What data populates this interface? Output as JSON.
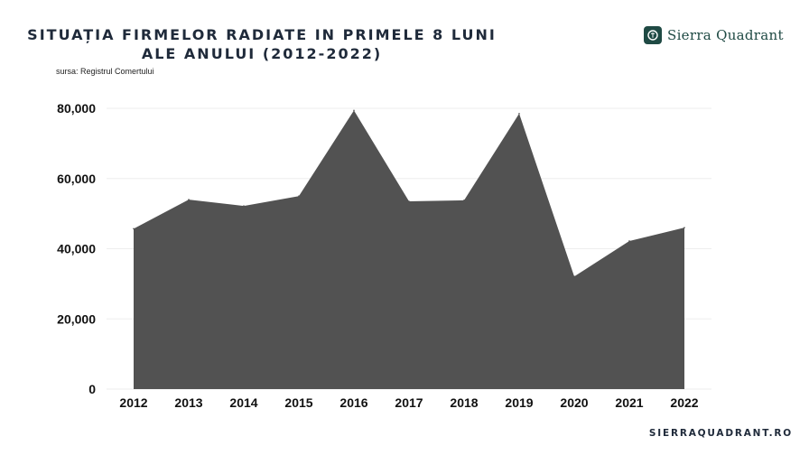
{
  "header": {
    "title_line1": "SITUAȚIA FIRMELOR RADIATE IN PRIMELE 8 LUNI",
    "title_line2": "ALE ANULUI (2012-2022)",
    "source": "sursa: Registrul Comertului"
  },
  "brand": {
    "name": "Sierra Quadrant",
    "website": "SIERRAQUADRANT.RO",
    "logo_icon": "sq-monogram-icon"
  },
  "colors": {
    "area": "#525252",
    "title": "#1f2a3a",
    "brand": "#1f4a44",
    "grid": "#eeeeee"
  },
  "chart_data": {
    "type": "area",
    "title": "SITUAȚIA FIRMELOR RADIATE IN PRIMELE 8 LUNI ALE ANULUI (2012-2022)",
    "xlabel": "",
    "ylabel": "",
    "categories": [
      "2012",
      "2013",
      "2014",
      "2015",
      "2016",
      "2017",
      "2018",
      "2019",
      "2020",
      "2021",
      "2022"
    ],
    "series": [
      {
        "values": [
          45700,
          54000,
          52200,
          55000,
          79400,
          53500,
          53800,
          78500,
          32100,
          42200,
          46000
        ]
      }
    ],
    "ylim": [
      0,
      80000
    ],
    "yticks": [
      0,
      20000,
      40000,
      60000,
      80000
    ],
    "ytick_labels": [
      "0",
      "20,000",
      "40,000",
      "60,000",
      "80,000"
    ],
    "grid": true,
    "legend": "none"
  }
}
